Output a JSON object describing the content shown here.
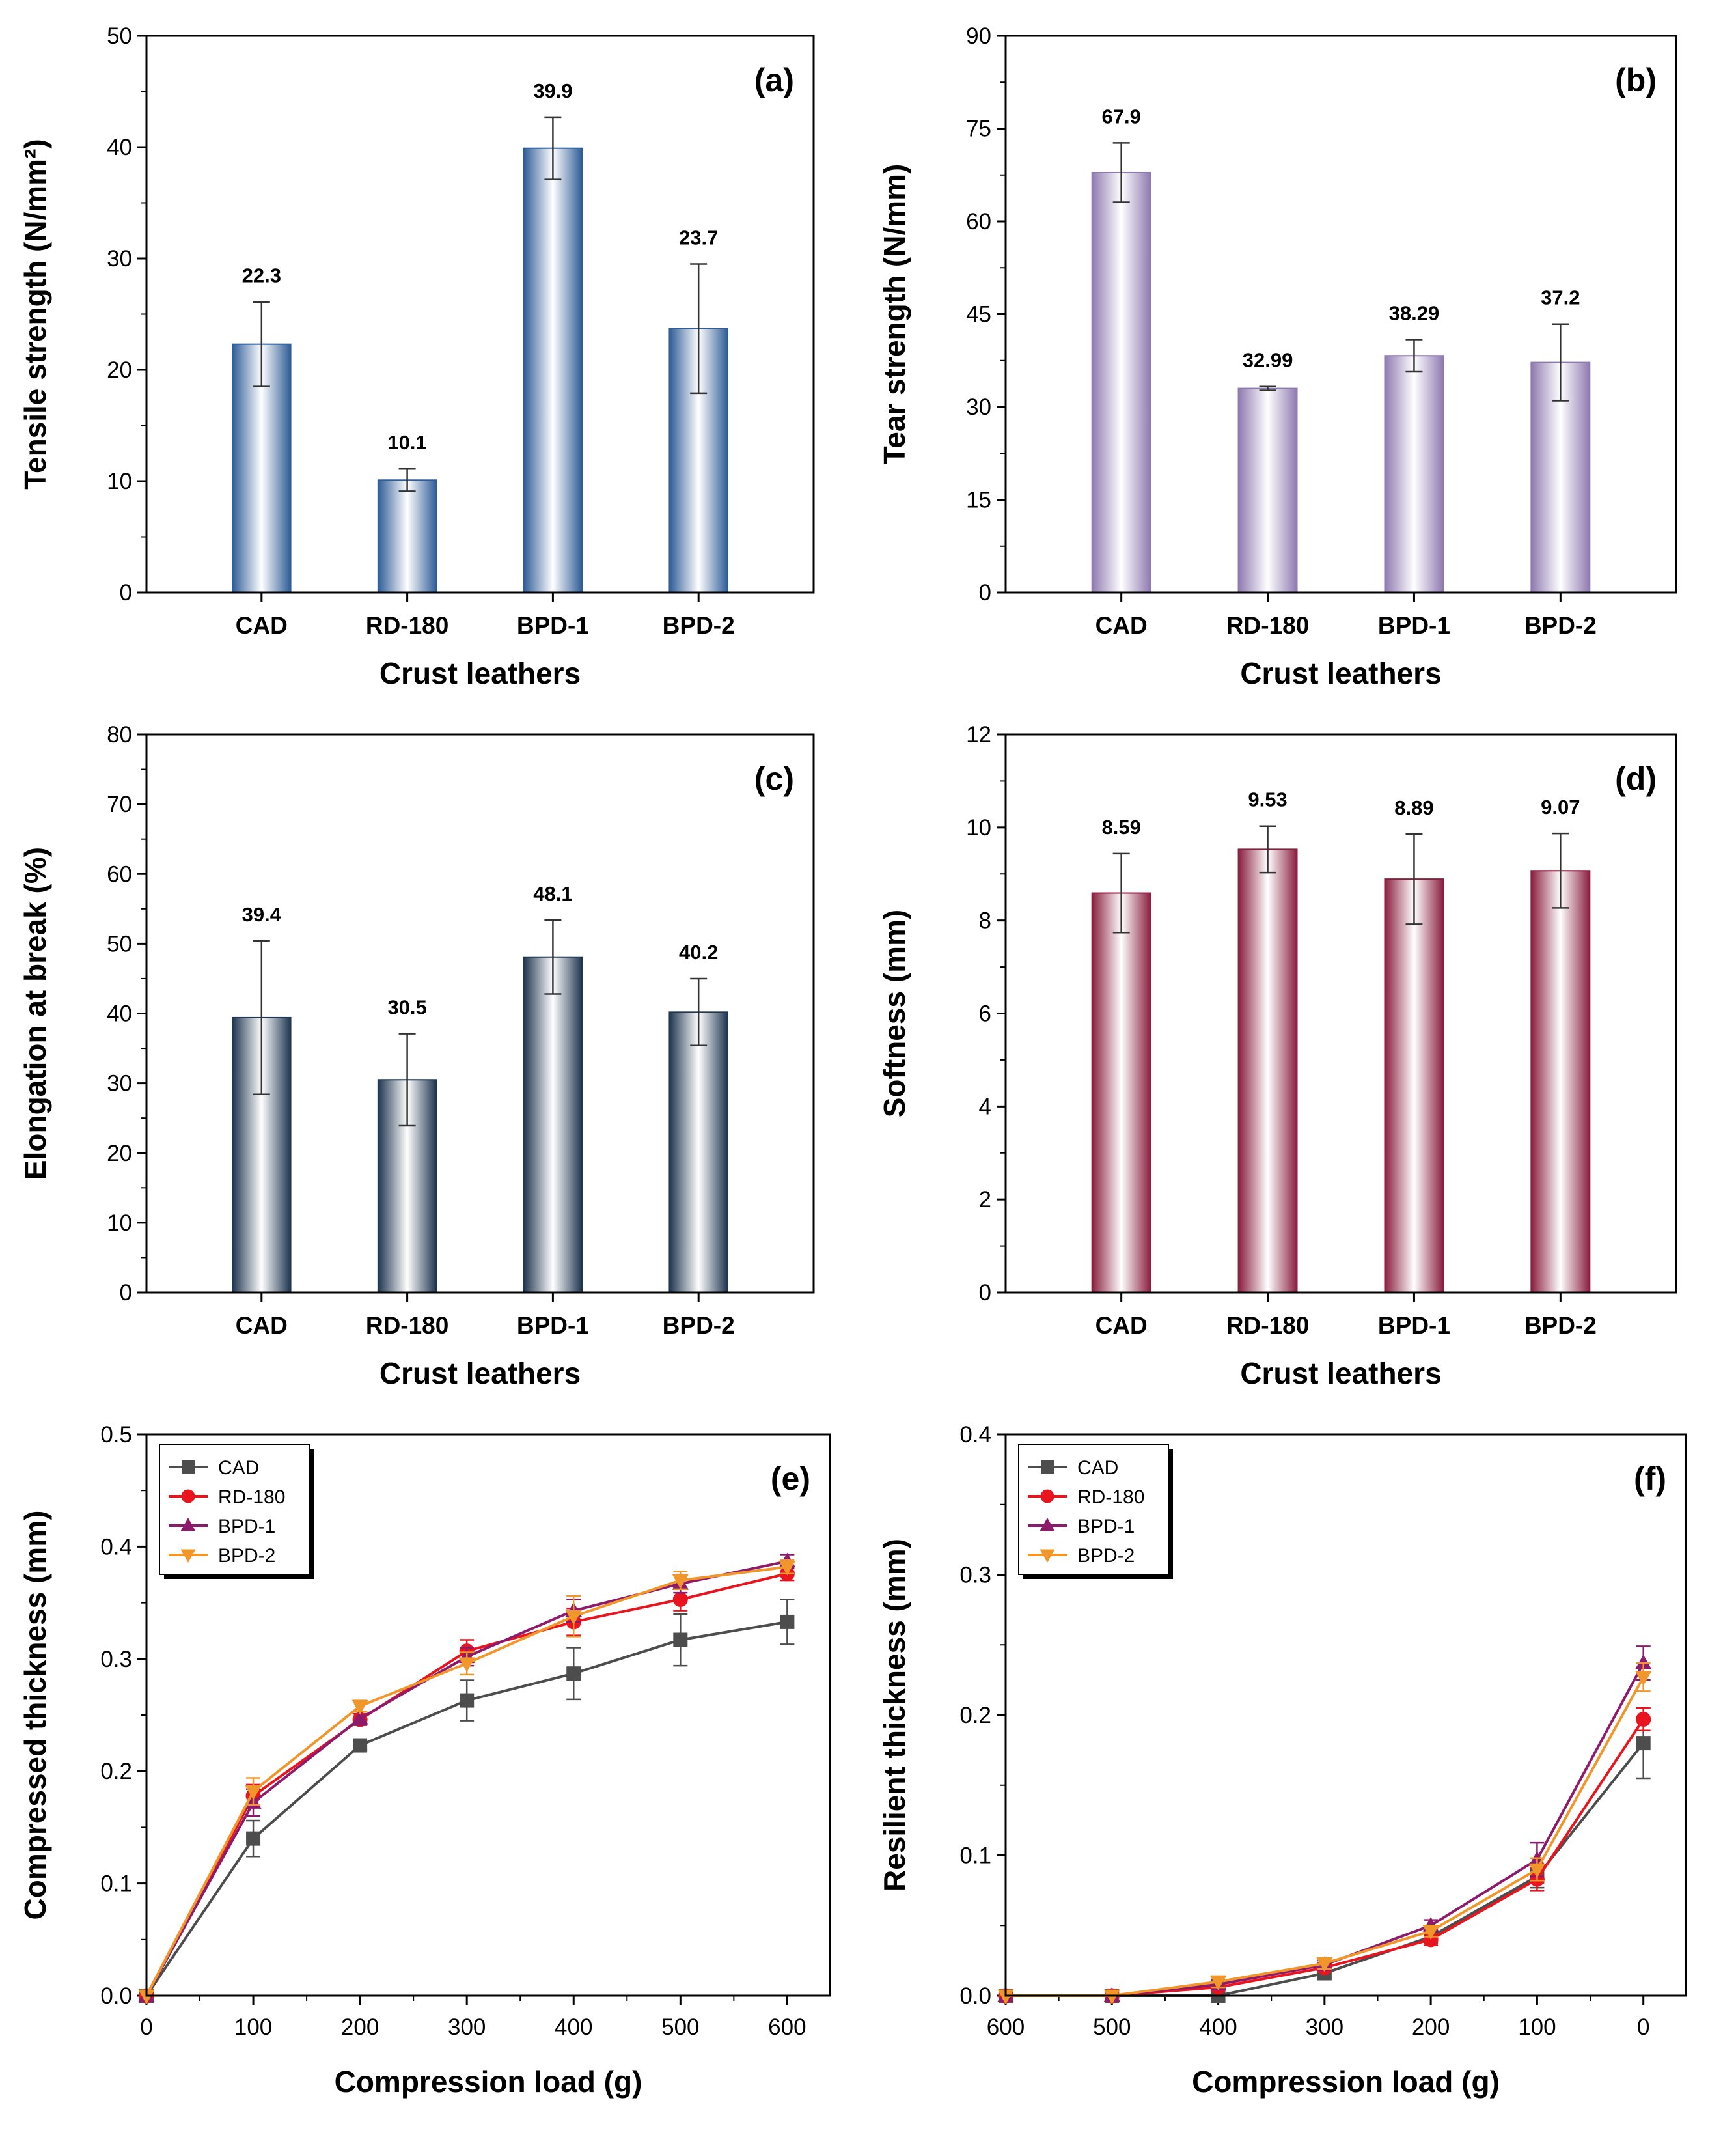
{
  "panels": [
    {
      "id": "a",
      "chart_data": {
        "type": "bar",
        "panel_label": "(a)",
        "categories": [
          "CAD",
          "RD-180",
          "BPD-1",
          "BPD-2"
        ],
        "values": [
          22.3,
          10.1,
          39.9,
          23.7
        ],
        "errors": [
          3.8,
          1.0,
          2.8,
          5.8
        ],
        "value_labels": [
          "22.3",
          "10.1",
          "39.9",
          "23.7"
        ],
        "xlabel": "Crust leathers",
        "ylabel": "Tensile strength (N/mm²)",
        "ylim": [
          0,
          50
        ],
        "yticks": [
          0,
          10,
          20,
          30,
          40,
          50
        ],
        "bar_color": "#2f5d97"
      }
    },
    {
      "id": "b",
      "chart_data": {
        "type": "bar",
        "panel_label": "(b)",
        "categories": [
          "CAD",
          "RD-180",
          "BPD-1",
          "BPD-2"
        ],
        "values": [
          67.9,
          32.99,
          38.29,
          37.2
        ],
        "errors": [
          4.8,
          0.3,
          2.6,
          6.2
        ],
        "value_labels": [
          "67.9",
          "32.99",
          "38.29",
          "37.2"
        ],
        "xlabel": "Crust leathers",
        "ylabel": "Tear strength (N/mm)",
        "ylim": [
          0,
          90
        ],
        "yticks": [
          0,
          15,
          30,
          45,
          60,
          75,
          90
        ],
        "bar_color": "#8f7ab0"
      }
    },
    {
      "id": "c",
      "chart_data": {
        "type": "bar",
        "panel_label": "(c)",
        "categories": [
          "CAD",
          "RD-180",
          "BPD-1",
          "BPD-2"
        ],
        "values": [
          39.4,
          30.5,
          48.1,
          40.2
        ],
        "errors": [
          11.0,
          6.6,
          5.3,
          4.8
        ],
        "value_labels": [
          "39.4",
          "30.5",
          "48.1",
          "40.2"
        ],
        "xlabel": "Crust leathers",
        "ylabel": "Elongation at break (%)",
        "ylim": [
          0,
          80
        ],
        "yticks": [
          0,
          10,
          20,
          30,
          40,
          50,
          60,
          70,
          80
        ],
        "bar_color": "#1f3550"
      }
    },
    {
      "id": "d",
      "chart_data": {
        "type": "bar",
        "panel_label": "(d)",
        "categories": [
          "CAD",
          "RD-180",
          "BPD-1",
          "BPD-2"
        ],
        "values": [
          8.59,
          9.53,
          8.89,
          9.07
        ],
        "errors": [
          0.85,
          0.5,
          0.97,
          0.8
        ],
        "value_labels": [
          "8.59",
          "9.53",
          "8.89",
          "9.07"
        ],
        "xlabel": "Crust leathers",
        "ylabel": "Softness (mm)",
        "ylim": [
          0,
          12
        ],
        "yticks": [
          0,
          2,
          4,
          6,
          8,
          10,
          12
        ],
        "bar_color": "#8a1f3f"
      }
    },
    {
      "id": "e",
      "chart_data": {
        "type": "line",
        "panel_label": "(e)",
        "x": [
          0,
          100,
          200,
          300,
          400,
          500,
          600
        ],
        "xlabel": "Compression load (g)",
        "ylabel": "Compressed thickness (mm)",
        "xlim": [
          0,
          640
        ],
        "ylim": [
          0,
          0.5
        ],
        "xticks": [
          0,
          100,
          200,
          300,
          400,
          500,
          600
        ],
        "yticks": [
          0.0,
          0.1,
          0.2,
          0.3,
          0.4,
          0.5
        ],
        "series": [
          {
            "name": "CAD",
            "color": "#4d4d4d",
            "marker": "square",
            "values": [
              0,
              0.14,
              0.223,
              0.263,
              0.287,
              0.317,
              0.333
            ],
            "errors": [
              0,
              0.016,
              0.004,
              0.018,
              0.023,
              0.023,
              0.02
            ]
          },
          {
            "name": "RD-180",
            "color": "#e8141e",
            "marker": "circle",
            "values": [
              0,
              0.178,
              0.246,
              0.307,
              0.333,
              0.353,
              0.376
            ],
            "errors": [
              0,
              0.01,
              0.005,
              0.01,
              0.012,
              0.01,
              0.006
            ]
          },
          {
            "name": "BPD-1",
            "color": "#8e1a6b",
            "marker": "triangle-up",
            "values": [
              0,
              0.172,
              0.247,
              0.302,
              0.343,
              0.367,
              0.387
            ],
            "errors": [
              0,
              0.012,
              0.006,
              0.008,
              0.01,
              0.008,
              0.006
            ]
          },
          {
            "name": "BPD-2",
            "color": "#f0962a",
            "marker": "triangle-down",
            "values": [
              0,
              0.182,
              0.258,
              0.296,
              0.338,
              0.37,
              0.382
            ],
            "errors": [
              0,
              0.012,
              0.005,
              0.01,
              0.018,
              0.008,
              0.006
            ]
          }
        ],
        "legend_position": "top-left"
      }
    },
    {
      "id": "f",
      "chart_data": {
        "type": "line",
        "panel_label": "(f)",
        "x": [
          600,
          500,
          400,
          300,
          200,
          100,
          0
        ],
        "x_reversed": true,
        "xlabel": "Compression load (g)",
        "ylabel": "Resilient thickness (mm)",
        "xlim": [
          600,
          -40
        ],
        "ylim": [
          0,
          0.4
        ],
        "xticks": [
          600,
          500,
          400,
          300,
          200,
          100,
          0
        ],
        "yticks": [
          0.0,
          0.1,
          0.2,
          0.3,
          0.4
        ],
        "series": [
          {
            "name": "CAD",
            "color": "#4d4d4d",
            "marker": "square",
            "values": [
              0,
              0,
              0,
              0.016,
              0.042,
              0.085,
              0.18
            ],
            "errors": [
              0,
              0,
              0,
              0.003,
              0.004,
              0.008,
              0.025
            ]
          },
          {
            "name": "RD-180",
            "color": "#e8141e",
            "marker": "circle",
            "values": [
              0,
              0,
              0.006,
              0.02,
              0.04,
              0.083,
              0.197
            ],
            "errors": [
              0,
              0,
              0.003,
              0.003,
              0.004,
              0.008,
              0.008
            ]
          },
          {
            "name": "BPD-1",
            "color": "#8e1a6b",
            "marker": "triangle-up",
            "values": [
              0,
              0,
              0.008,
              0.022,
              0.05,
              0.097,
              0.237
            ],
            "errors": [
              0,
              0,
              0.003,
              0.003,
              0.004,
              0.012,
              0.012
            ]
          },
          {
            "name": "BPD-2",
            "color": "#f0962a",
            "marker": "triangle-down",
            "values": [
              0,
              0,
              0.01,
              0.023,
              0.046,
              0.09,
              0.227
            ],
            "errors": [
              0,
              0,
              0.004,
              0.004,
              0.004,
              0.008,
              0.01
            ]
          }
        ],
        "legend_position": "top-left"
      }
    }
  ]
}
